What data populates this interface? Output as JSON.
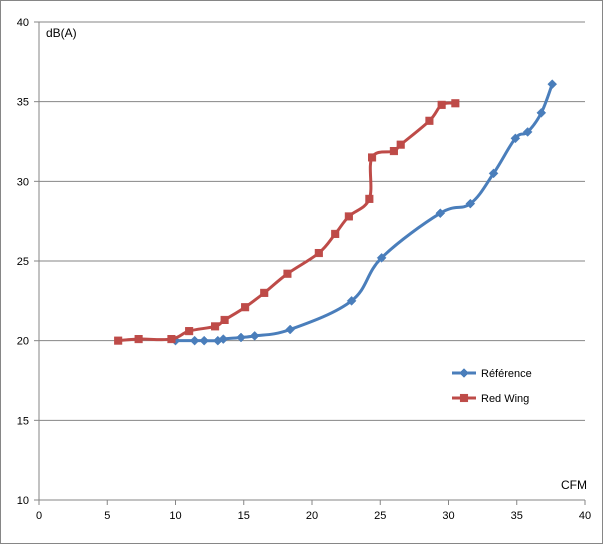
{
  "chart_data": {
    "type": "line",
    "title": "",
    "xlabel": "CFM",
    "ylabel": "dB(A)",
    "xlim": [
      0,
      40
    ],
    "ylim": [
      10,
      40
    ],
    "x_ticks": [
      0,
      5,
      10,
      15,
      20,
      25,
      30,
      35,
      40
    ],
    "y_ticks": [
      10,
      15,
      20,
      25,
      30,
      35,
      40
    ],
    "grid": "horizontal",
    "legend_position": "right",
    "series": [
      {
        "name": "Référence",
        "color": "#4A7EBB",
        "marker": "diamond",
        "x": [
          10.0,
          11.4,
          12.1,
          13.1,
          13.5,
          14.8,
          15.8,
          18.4,
          22.9,
          25.1,
          29.4,
          31.6,
          33.3,
          34.9,
          35.8,
          36.8,
          37.6
        ],
        "y": [
          20.0,
          20.0,
          20.0,
          20.0,
          20.1,
          20.2,
          20.3,
          20.7,
          22.5,
          25.2,
          28.0,
          28.6,
          30.5,
          32.7,
          33.1,
          34.3,
          36.1
        ]
      },
      {
        "name": "Red Wing",
        "color": "#BE4B48",
        "marker": "square",
        "x": [
          5.8,
          7.3,
          9.7,
          11.0,
          12.9,
          13.6,
          15.1,
          16.5,
          18.2,
          20.5,
          21.7,
          22.7,
          24.2,
          24.4,
          26.0,
          26.5,
          28.6,
          29.5,
          30.5
        ],
        "y": [
          20.0,
          20.1,
          20.1,
          20.6,
          20.9,
          21.3,
          22.1,
          23.0,
          24.2,
          25.5,
          26.7,
          27.8,
          28.9,
          31.5,
          31.9,
          32.3,
          33.8,
          34.8,
          34.9
        ]
      }
    ]
  }
}
